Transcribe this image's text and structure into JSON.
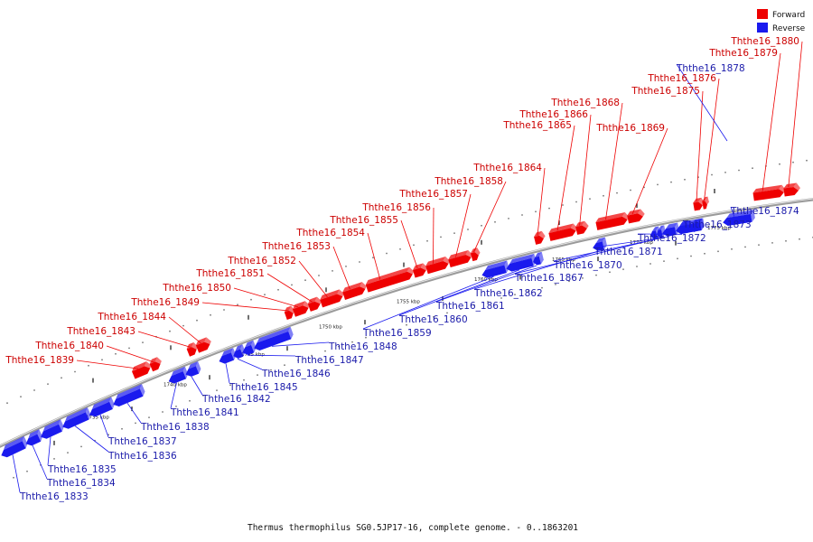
{
  "caption": "Thermus thermophilus SG0.5JP17-16, complete genome. - 0..1863201",
  "legend": {
    "forward": "Forward",
    "reverse": "Reverse"
  },
  "colors": {
    "forward": "#ee0000",
    "reverse": "#1a1aee",
    "forward_text": "#cc0000",
    "reverse_text": "#1a1aaa",
    "backbone": "#9a9a9a"
  },
  "kbp_markers": [
    "1735 kbp",
    "1740 kbp",
    "1745 kbp",
    "1750 kbp",
    "1755 kbp",
    "1760 kbp",
    "1765 kbp",
    "1770 kbp",
    "1775 kbp"
  ],
  "forward_genes": [
    "Ththe16_1839",
    "Ththe16_1840",
    "Ththe16_1843",
    "Ththe16_1844",
    "Ththe16_1849",
    "Ththe16_1850",
    "Ththe16_1851",
    "Ththe16_1852",
    "Ththe16_1853",
    "Ththe16_1854",
    "Ththe16_1855",
    "Ththe16_1856",
    "Ththe16_1857",
    "Ththe16_1858",
    "Ththe16_1864",
    "Ththe16_1865",
    "Ththe16_1866",
    "Ththe16_1868",
    "Ththe16_1869",
    "Ththe16_1875",
    "Ththe16_1876",
    "Ththe16_1879",
    "Ththe16_1880"
  ],
  "reverse_genes": [
    "Ththe16_1833",
    "Ththe16_1834",
    "Ththe16_1835",
    "Ththe16_1836",
    "Ththe16_1837",
    "Ththe16_1838",
    "Ththe16_1841",
    "Ththe16_1842",
    "Ththe16_1845",
    "Ththe16_1846",
    "Ththe16_1847",
    "Ththe16_1848",
    "Ththe16_1859",
    "Ththe16_1860",
    "Ththe16_1861",
    "Ththe16_1862",
    "Ththe16_1867",
    "Ththe16_1870",
    "Ththe16_1871",
    "Ththe16_1872",
    "Ththe16_1873",
    "Ththe16_1874",
    "Ththe16_1878"
  ]
}
